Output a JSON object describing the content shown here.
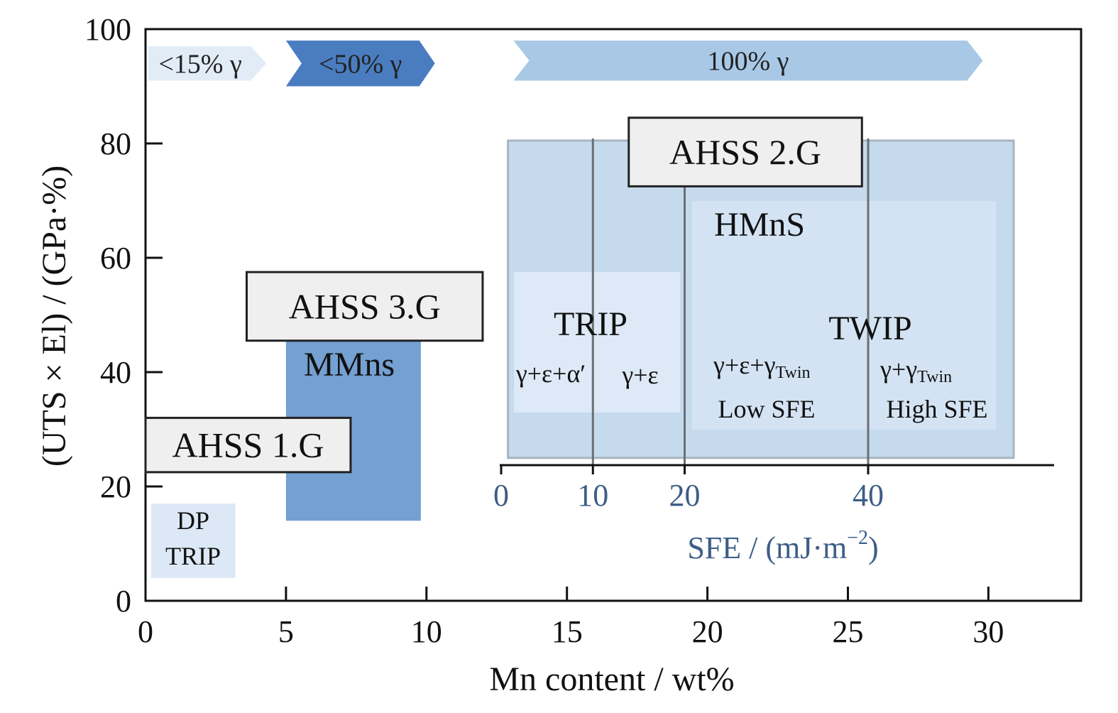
{
  "chart_data": {
    "type": "area",
    "xlabel": "Mn content / wt%",
    "ylabel": "(UTS × El) / (GPa·%)",
    "xlim": [
      0,
      33.3
    ],
    "ylim": [
      0,
      100
    ],
    "xticks": [
      "0",
      "5",
      "10",
      "15",
      "20",
      "25",
      "30"
    ],
    "yticks": [
      "0",
      "20",
      "40",
      "60",
      "80",
      "100"
    ],
    "grid": false,
    "austenite_bands": [
      {
        "label": "<15% γ",
        "x": [
          0.1,
          4.3
        ],
        "y": [
          91,
          97
        ],
        "color": "#e2ecf7"
      },
      {
        "label": "<50% γ",
        "x": [
          5.0,
          10.3
        ],
        "y": [
          90,
          98
        ],
        "color": "#4a7cc0"
      },
      {
        "label": "100% γ",
        "x": [
          13.1,
          29.8
        ],
        "y": [
          91,
          98
        ],
        "color": "#a8c8e6"
      }
    ],
    "regions": [
      {
        "label": "DP",
        "label2": "TRIP",
        "x": [
          0.2,
          3.2
        ],
        "y": [
          4,
          17
        ],
        "color": "#dce8f5"
      },
      {
        "label": "MMns",
        "x": [
          5.0,
          9.8
        ],
        "y": [
          14,
          45.5
        ],
        "color": "#74a0d2"
      },
      {
        "label": "HMnS",
        "x": [
          12.9,
          30.9
        ],
        "y": [
          25,
          80.5
        ],
        "color": "#c6daee"
      }
    ],
    "generations": [
      {
        "label": "AHSS 1.G",
        "x": [
          0,
          7.3
        ],
        "y": [
          22.5,
          32
        ]
      },
      {
        "label": "AHSS 2.G",
        "x": [
          17.2,
          25.5
        ],
        "y": [
          72.5,
          84.5
        ]
      },
      {
        "label": "AHSS 3.G",
        "x": [
          3.6,
          12
        ],
        "y": [
          45.5,
          57.5
        ]
      }
    ],
    "sfe_axis": {
      "label": "SFE / (mJ·m",
      "label_sup": "−2",
      "label_close": ")",
      "range": [
        0,
        60
      ],
      "ticks": [
        0,
        10,
        20,
        40
      ],
      "tick_labels": [
        "0",
        "10",
        "20",
        "40"
      ],
      "color": "#3d5d86"
    },
    "sfe_dividers": [
      10,
      20,
      40
    ],
    "sfe_subregions": [
      {
        "label": "TRIP",
        "sub": [
          {
            "text": "γ+ε+α′"
          },
          {
            "text": "γ+ε"
          }
        ]
      },
      {
        "label": "TWIP",
        "sub": [
          {
            "text": "γ+ε+γ",
            "subscript": "Twin",
            "note": "Low SFE"
          },
          {
            "text": "γ+γ",
            "subscript": "Twin",
            "note": "High SFE"
          }
        ]
      }
    ]
  }
}
